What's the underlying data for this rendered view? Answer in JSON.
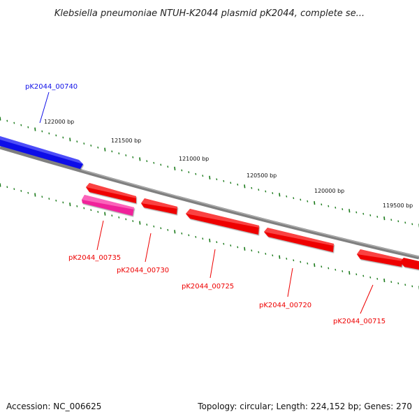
{
  "title": "Klebsiella pneumoniae NTUH-K2044 plasmid pK2044, complete se...",
  "footer": {
    "accession": "Accession: NC_006625",
    "summary": "Topology: circular; Length: 224,152 bp; Genes: 270"
  },
  "colors": {
    "forward_gene": "#1010e8",
    "reverse_gene": "#ee0000",
    "highlight_gene": "#f0209a",
    "backbone": "#808080",
    "tick": "#1a7a1a"
  },
  "ticks": [
    "122000 bp",
    "121500 bp",
    "121000 bp",
    "120500 bp",
    "120000 bp",
    "119500 bp"
  ],
  "genes": [
    {
      "label": "pK2044_00740",
      "strand": "forward"
    },
    {
      "label": "pK2044_00735",
      "strand": "reverse"
    },
    {
      "label": "pK2044_00730",
      "strand": "reverse"
    },
    {
      "label": "pK2044_00725",
      "strand": "reverse"
    },
    {
      "label": "pK2044_00720",
      "strand": "reverse"
    },
    {
      "label": "pK2044_00715",
      "strand": "reverse"
    }
  ]
}
